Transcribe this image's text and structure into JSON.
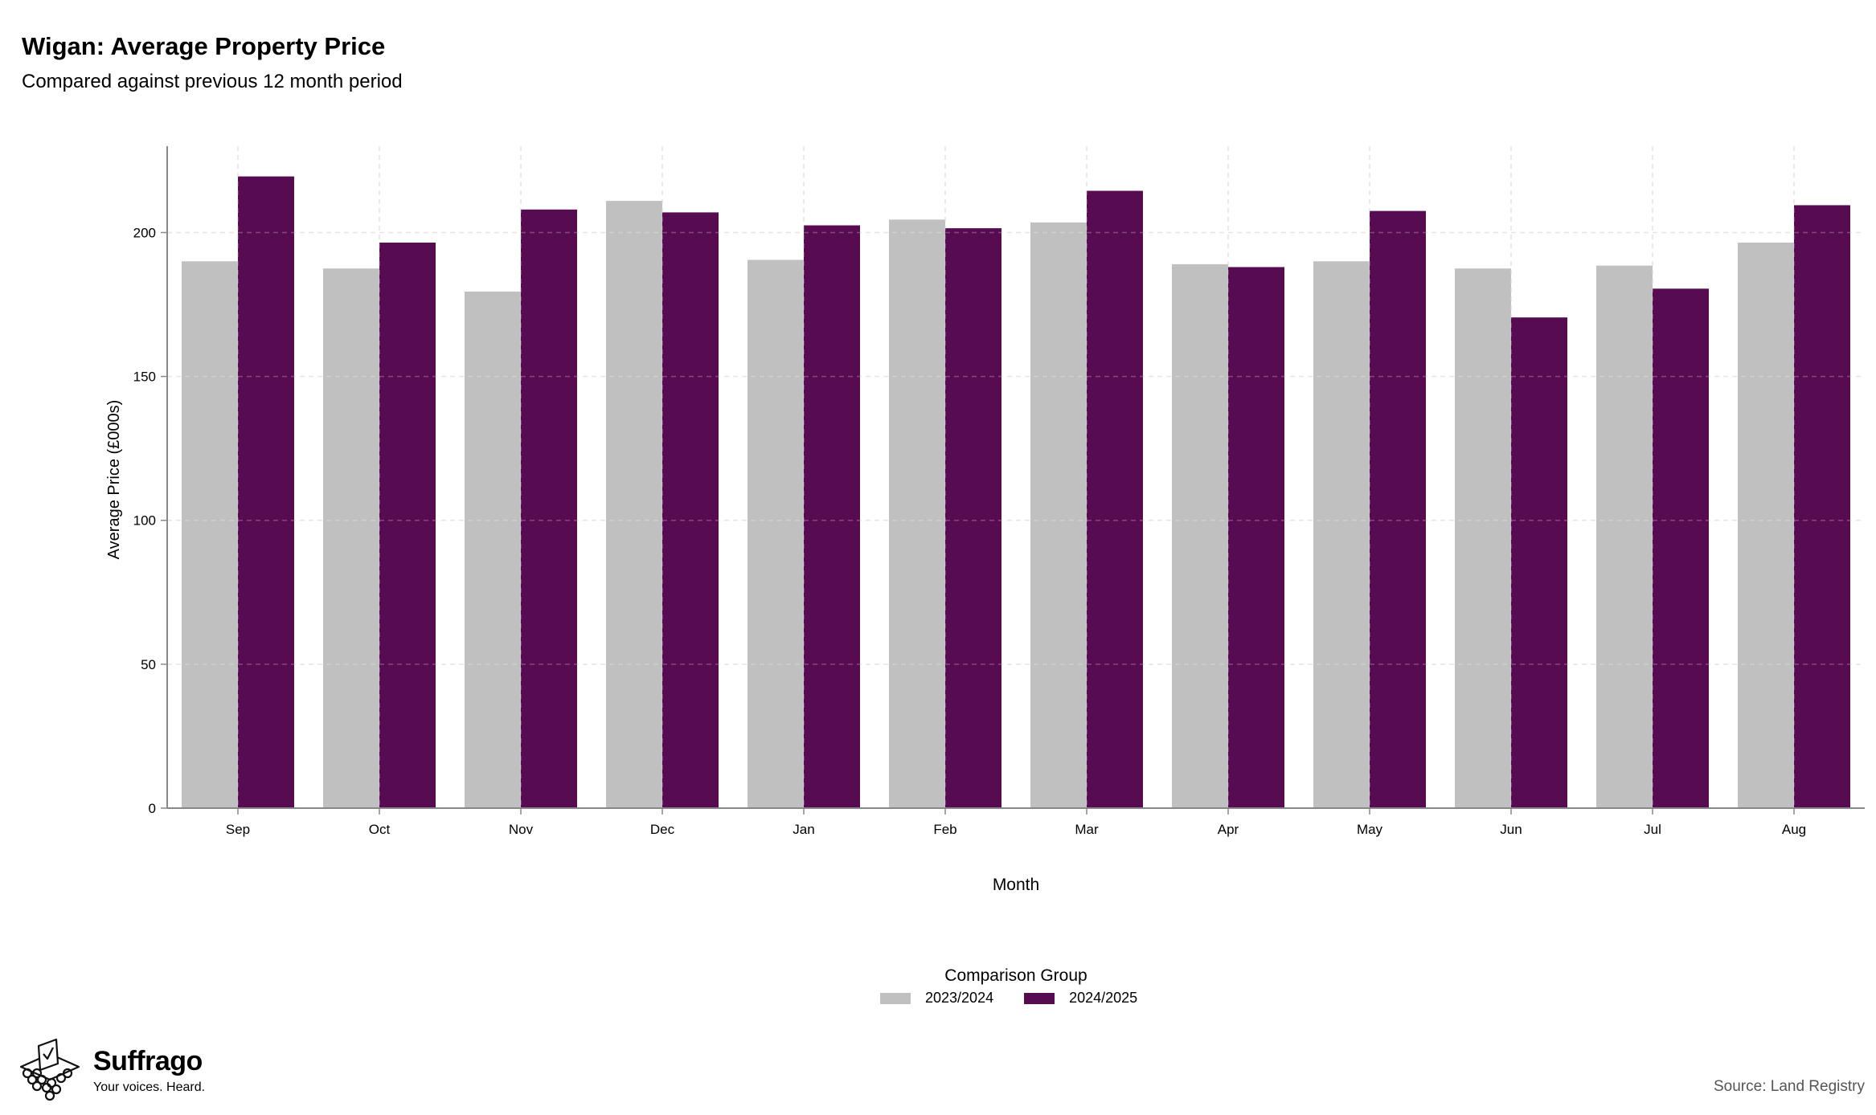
{
  "header": {
    "title": "Wigan: Average Property Price",
    "subtitle": "Compared against previous 12 month period"
  },
  "legend": {
    "title": "Comparison Group",
    "items": [
      {
        "label": "2023/2024",
        "color": "#c0c0c0"
      },
      {
        "label": "2024/2025",
        "color": "#570c52"
      }
    ]
  },
  "branding": {
    "name": "Suffrago",
    "tagline": "Your voices. Heard.",
    "icon": "ballot-box-icon"
  },
  "source": "Source: Land Registry",
  "chart_data": {
    "type": "bar",
    "xlabel": "Month",
    "ylabel": "Average Price (£000s)",
    "ylim": [
      0,
      230
    ],
    "yticks": [
      0,
      50,
      100,
      150,
      200
    ],
    "grid": true,
    "legend_position": "bottom",
    "categories": [
      "Sep",
      "Oct",
      "Nov",
      "Dec",
      "Jan",
      "Feb",
      "Mar",
      "Apr",
      "May",
      "Jun",
      "Jul",
      "Aug"
    ],
    "series": [
      {
        "name": "2023/2024",
        "color": "#c0c0c0",
        "values": [
          190,
          187.5,
          179.5,
          211,
          190.5,
          204.5,
          203.5,
          189,
          190,
          187.5,
          188.5,
          196.5
        ]
      },
      {
        "name": "2024/2025",
        "color": "#570c52",
        "values": [
          219.5,
          196.5,
          208,
          207,
          202.5,
          201.5,
          214.5,
          188,
          207.5,
          170.5,
          180.5,
          209.5
        ]
      }
    ]
  }
}
